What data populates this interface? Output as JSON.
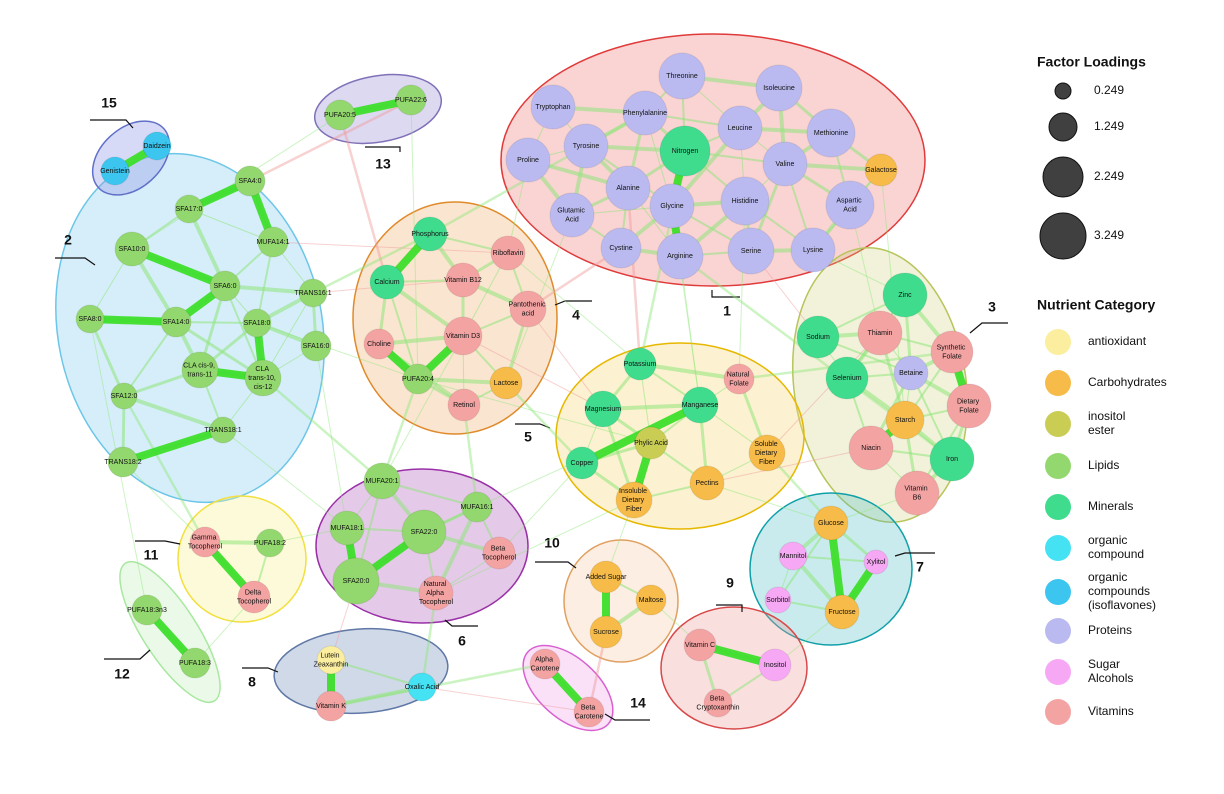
{
  "legend": {
    "factor_title": "Factor Loadings",
    "factor_labels": [
      "0.249",
      "1.249",
      "2.249",
      "3.249"
    ],
    "category_title": "Nutrient Category",
    "categories": [
      {
        "label": "antioxidant",
        "color": "#fbee9e"
      },
      {
        "label": "Carbohydrates",
        "color": "#f6bb48"
      },
      {
        "label": "inositol ester",
        "color": "#c9cd54"
      },
      {
        "label": "Lipids",
        "color": "#93d86e"
      },
      {
        "label": "Minerals",
        "color": "#40dc8e"
      },
      {
        "label": "organic compound",
        "color": "#44e2f2"
      },
      {
        "label": "organic compounds (isoflavones)",
        "color": "#3cc6ef"
      },
      {
        "label": "Proteins",
        "color": "#babaf0"
      },
      {
        "label": "Sugar Alcohols",
        "color": "#f7a8f5"
      },
      {
        "label": "Vitamins",
        "color": "#f4a3a3"
      }
    ]
  },
  "clusters": [
    "1",
    "2",
    "3",
    "4",
    "5",
    "6",
    "7",
    "8",
    "9",
    "10",
    "11",
    "12",
    "13",
    "14",
    "15"
  ],
  "nodes": [
    {
      "label": "Threonine",
      "color": "#babaf0"
    },
    {
      "label": "Isoleucine",
      "color": "#babaf0"
    },
    {
      "label": "Tryptophan",
      "color": "#babaf0"
    },
    {
      "label": "Phenylalanine",
      "color": "#babaf0"
    },
    {
      "label": "Leucine",
      "color": "#babaf0"
    },
    {
      "label": "Methionine",
      "color": "#babaf0"
    },
    {
      "label": "Tyrosine",
      "color": "#babaf0"
    },
    {
      "label": "Nitrogen",
      "color": "#40dc8e"
    },
    {
      "label": "Valine",
      "color": "#babaf0"
    },
    {
      "label": "Galactose",
      "color": "#f6bb48"
    },
    {
      "label": "Proline",
      "color": "#babaf0"
    },
    {
      "label": "Alanine",
      "color": "#babaf0"
    },
    {
      "label": "Histidine",
      "color": "#babaf0"
    },
    {
      "label": "Glycine",
      "color": "#babaf0"
    },
    {
      "label": "Aspartic Acid",
      "color": "#babaf0"
    },
    {
      "label": "Glutamic Acid",
      "color": "#babaf0"
    },
    {
      "label": "Cystine",
      "color": "#babaf0"
    },
    {
      "label": "Arginine",
      "color": "#babaf0"
    },
    {
      "label": "Serine",
      "color": "#babaf0"
    },
    {
      "label": "Lysine",
      "color": "#babaf0"
    },
    {
      "label": "SFA4:0",
      "color": "#93d86e"
    },
    {
      "label": "SFA17:0",
      "color": "#93d86e"
    },
    {
      "label": "SFA10:0",
      "color": "#93d86e"
    },
    {
      "label": "MUFA14:1",
      "color": "#93d86e"
    },
    {
      "label": "SFA6:0",
      "color": "#93d86e"
    },
    {
      "label": "TRANS16:1",
      "color": "#93d86e"
    },
    {
      "label": "SFA8:0",
      "color": "#93d86e"
    },
    {
      "label": "SFA14:0",
      "color": "#93d86e"
    },
    {
      "label": "SFA18:0",
      "color": "#93d86e"
    },
    {
      "label": "SFA16:0",
      "color": "#93d86e"
    },
    {
      "label": "CLA cis-9, trans-11",
      "color": "#93d86e"
    },
    {
      "label": "CLA trans-10, cis-12",
      "color": "#93d86e"
    },
    {
      "label": "SFA12:0",
      "color": "#93d86e"
    },
    {
      "label": "TRANS18:1",
      "color": "#93d86e"
    },
    {
      "label": "TRANS18:2",
      "color": "#93d86e"
    },
    {
      "label": "Phosphorus",
      "color": "#40dc8e"
    },
    {
      "label": "Riboflavin",
      "color": "#f4a3a3"
    },
    {
      "label": "Calcium",
      "color": "#40dc8e"
    },
    {
      "label": "Vitamin B12",
      "color": "#f4a3a3"
    },
    {
      "label": "Pantothenic acid",
      "color": "#f4a3a3"
    },
    {
      "label": "Vitamin D3",
      "color": "#f4a3a3"
    },
    {
      "label": "Choline",
      "color": "#f4a3a3"
    },
    {
      "label": "PUFA20:4",
      "color": "#93d86e"
    },
    {
      "label": "Lactose",
      "color": "#f6bb48"
    },
    {
      "label": "Retinol",
      "color": "#f4a3a3"
    },
    {
      "label": "Zinc",
      "color": "#40dc8e"
    },
    {
      "label": "Sodium",
      "color": "#40dc8e"
    },
    {
      "label": "Thiamin",
      "color": "#f4a3a3"
    },
    {
      "label": "Synthetic Folate",
      "color": "#f4a3a3"
    },
    {
      "label": "Betaine",
      "color": "#babaf0"
    },
    {
      "label": "Selenium",
      "color": "#40dc8e"
    },
    {
      "label": "Starch",
      "color": "#f6bb48"
    },
    {
      "label": "Dietary Folate",
      "color": "#f4a3a3"
    },
    {
      "label": "Niacin",
      "color": "#f4a3a3"
    },
    {
      "label": "Iron",
      "color": "#40dc8e"
    },
    {
      "label": "Vitamin B6",
      "color": "#f4a3a3"
    },
    {
      "label": "Potassium",
      "color": "#40dc8e"
    },
    {
      "label": "Natural Folate",
      "color": "#f4a3a3"
    },
    {
      "label": "Magnesium",
      "color": "#40dc8e"
    },
    {
      "label": "Manganese",
      "color": "#40dc8e"
    },
    {
      "label": "Phylic Acid",
      "color": "#c9cd54"
    },
    {
      "label": "Soluble Dietary Fiber",
      "color": "#f6bb48"
    },
    {
      "label": "Copper",
      "color": "#40dc8e"
    },
    {
      "label": "Pectins",
      "color": "#f6bb48"
    },
    {
      "label": "Insoluble Dietary Fiber",
      "color": "#f6bb48"
    },
    {
      "label": "MUFA20:1",
      "color": "#93d86e"
    },
    {
      "label": "MUFA16:1",
      "color": "#93d86e"
    },
    {
      "label": "MUFA18:1",
      "color": "#93d86e"
    },
    {
      "label": "SFA22:0",
      "color": "#93d86e"
    },
    {
      "label": "Beta Tocopherol",
      "color": "#f4a3a3"
    },
    {
      "label": "SFA20:0",
      "color": "#93d86e"
    },
    {
      "label": "Natural Alpha Tocopherol",
      "color": "#f4a3a3"
    },
    {
      "label": "Glucose",
      "color": "#f6bb48"
    },
    {
      "label": "Mannitol",
      "color": "#f7a8f5"
    },
    {
      "label": "Xylitol",
      "color": "#f7a8f5"
    },
    {
      "label": "Sorbitol",
      "color": "#f7a8f5"
    },
    {
      "label": "Fructose",
      "color": "#f6bb48"
    },
    {
      "label": "Lutein Zeaxanthin",
      "color": "#fbee9e"
    },
    {
      "label": "Oxalic Acid",
      "color": "#44e2f2"
    },
    {
      "label": "Vitamin K",
      "color": "#f4a3a3"
    },
    {
      "label": "Vitamin C",
      "color": "#f4a3a3"
    },
    {
      "label": "Inositol",
      "color": "#f7a8f5"
    },
    {
      "label": "Beta Cryptoxanthin",
      "color": "#f4a3a3"
    },
    {
      "label": "Added Sugar",
      "color": "#f6bb48"
    },
    {
      "label": "Maltose",
      "color": "#f6bb48"
    },
    {
      "label": "Sucrose",
      "color": "#f6bb48"
    },
    {
      "label": "Gamma Tocopherol",
      "color": "#f4a3a3"
    },
    {
      "label": "PUFA18:2",
      "color": "#93d86e"
    },
    {
      "label": "Delta Tocopherol",
      "color": "#f4a3a3"
    },
    {
      "label": "PUFA18:3n3",
      "color": "#93d86e"
    },
    {
      "label": "PUFA18:3",
      "color": "#93d86e"
    },
    {
      "label": "PUFA20:5",
      "color": "#93d86e"
    },
    {
      "label": "PUFA22:6",
      "color": "#93d86e"
    },
    {
      "label": "Alpha Carotene",
      "color": "#f4a3a3"
    },
    {
      "label": "Beta Carotene",
      "color": "#f4a3a3"
    },
    {
      "label": "Daidzein",
      "color": "#3cc6ef"
    },
    {
      "label": "Genistein",
      "color": "#3cc6ef"
    }
  ]
}
